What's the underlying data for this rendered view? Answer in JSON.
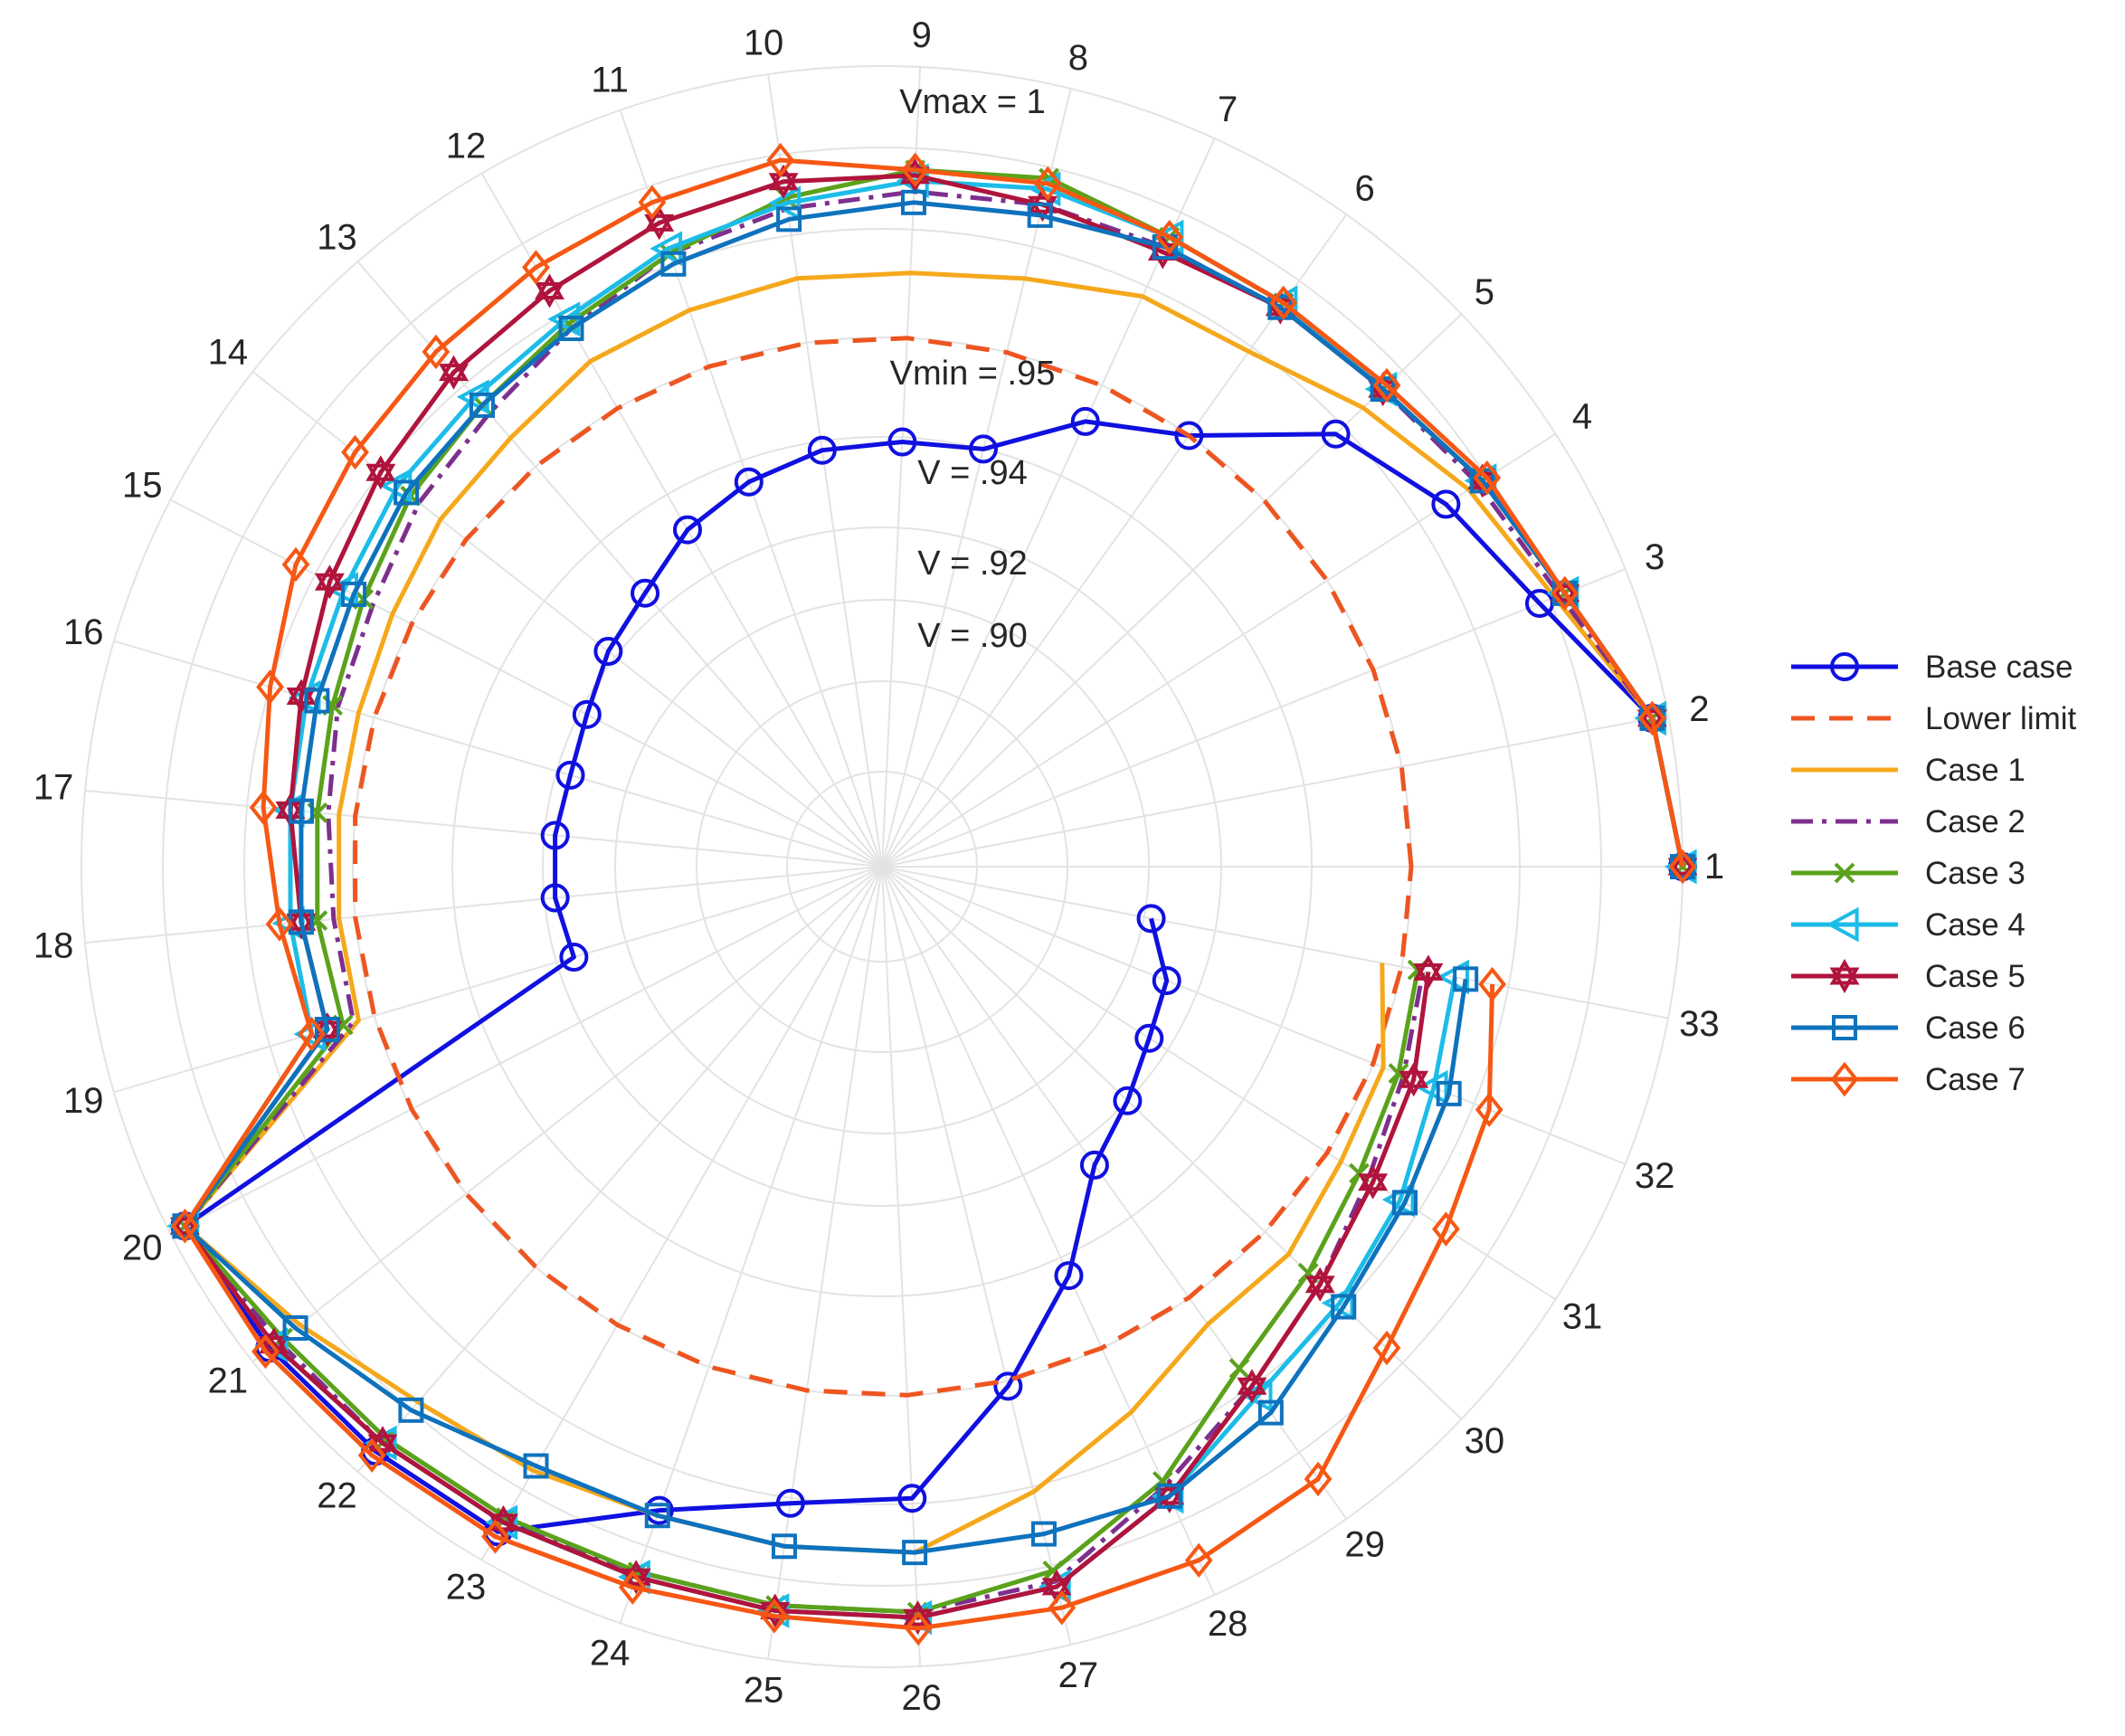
{
  "chart_data": {
    "type": "polar-line",
    "title": "",
    "radial_axis": {
      "label_values": [
        0.9,
        0.92,
        0.94,
        0.95,
        1.0
      ]
    },
    "spokes": [
      "1",
      "2",
      "3",
      "4",
      "5",
      "6",
      "7",
      "8",
      "9",
      "10",
      "11",
      "12",
      "13",
      "14",
      "15",
      "16",
      "17",
      "18",
      "19",
      "20",
      "21",
      "22",
      "23",
      "24",
      "25",
      "26",
      "27",
      "28",
      "29",
      "30",
      "31",
      "32",
      "33"
    ],
    "ring_labels": [
      {
        "value": 1.0,
        "text": "Vmax = 1"
      },
      {
        "value": 0.95,
        "text": "Vmin = .95"
      },
      {
        "value": 0.94,
        "text": "V = .94"
      },
      {
        "value": 0.92,
        "text": "V = .92"
      },
      {
        "value": 0.9,
        "text": "V = .90"
      }
    ],
    "series": [
      {
        "name": "Base case",
        "color": "#1010e0",
        "dash": "solid",
        "marker": "circle",
        "values": [
          1.0,
          0.997,
          0.983,
          0.976,
          0.968,
          0.95,
          0.946,
          0.94,
          0.939,
          0.938,
          0.935,
          0.931,
          0.925,
          0.922,
          0.918,
          0.916,
          0.917,
          0.917,
          0.915,
          0.997,
          0.996,
          0.995,
          0.994,
          0.978,
          0.971,
          0.969,
          0.951,
          0.942,
          0.926,
          0.92,
          0.914,
          0.911,
          0.902
        ]
      },
      {
        "name": "Lower limit",
        "color": "#ee5520",
        "dash": "dashed",
        "marker": "none",
        "values": [
          0.95,
          0.95,
          0.95,
          0.95,
          0.95,
          0.95,
          0.95,
          0.95,
          0.95,
          0.95,
          0.95,
          0.95,
          0.95,
          0.95,
          0.95,
          0.95,
          0.95,
          0.95,
          0.95,
          0.95,
          0.95,
          0.95,
          0.95,
          0.95,
          0.95,
          0.95,
          0.95,
          0.95,
          0.95,
          0.95,
          0.95,
          0.95,
          0.95
        ]
      },
      {
        "name": "Case 1",
        "color": "#f5a81c",
        "dash": "solid",
        "marker": "none",
        "values": [
          1.0,
          0.997,
          0.986,
          0.981,
          0.975,
          0.969,
          0.968,
          0.964,
          0.962,
          0.962,
          0.961,
          0.96,
          0.957,
          0.956,
          0.954,
          0.953,
          0.953,
          0.953,
          0.953,
          0.997,
          0.989,
          0.983,
          0.981,
          0.979,
          0.979,
          0.979,
          0.971,
          0.963,
          0.956,
          0.956,
          0.953,
          0.952,
          0.948
        ]
      },
      {
        "name": "Case 2",
        "color": "#7e2f8e",
        "dash": "dashdot",
        "marker": "none",
        "values": [
          1.0,
          0.997,
          0.987,
          0.983,
          0.98,
          0.979,
          0.978,
          0.978,
          0.977,
          0.975,
          0.972,
          0.967,
          0.963,
          0.961,
          0.958,
          0.957,
          0.955,
          0.954,
          0.954,
          0.997,
          0.994,
          0.993,
          0.992,
          0.99,
          0.99,
          0.99,
          0.988,
          0.978,
          0.97,
          0.964,
          0.959,
          0.956,
          0.954
        ]
      },
      {
        "name": "Case 3",
        "color": "#5ba21c",
        "dash": "solid",
        "marker": "x",
        "values": [
          1.0,
          0.997,
          0.988,
          0.984,
          0.98,
          0.98,
          0.98,
          0.983,
          0.981,
          0.977,
          0.972,
          0.968,
          0.965,
          0.963,
          0.96,
          0.958,
          0.957,
          0.957,
          0.956,
          0.997,
          0.993,
          0.992,
          0.991,
          0.99,
          0.99,
          0.99,
          0.986,
          0.977,
          0.966,
          0.961,
          0.957,
          0.955,
          0.953
        ]
      },
      {
        "name": "Case 4",
        "color": "#1cbce8",
        "dash": "solid",
        "marker": "tri",
        "values": [
          1.0,
          0.997,
          0.988,
          0.984,
          0.98,
          0.98,
          0.98,
          0.981,
          0.979,
          0.976,
          0.973,
          0.969,
          0.967,
          0.966,
          0.964,
          0.963,
          0.962,
          0.962,
          0.962,
          0.997,
          0.995,
          0.993,
          0.992,
          0.991,
          0.991,
          0.991,
          0.989,
          0.98,
          0.972,
          0.969,
          0.966,
          0.962,
          0.96
        ]
      },
      {
        "name": "Case 5",
        "color": "#b0143c",
        "dash": "solid",
        "marker": "star",
        "values": [
          1.0,
          0.997,
          0.988,
          0.984,
          0.98,
          0.979,
          0.977,
          0.978,
          0.98,
          0.98,
          0.978,
          0.975,
          0.973,
          0.97,
          0.967,
          0.964,
          0.962,
          0.96,
          0.959,
          0.997,
          0.995,
          0.993,
          0.992,
          0.991,
          0.991,
          0.991,
          0.989,
          0.98,
          0.97,
          0.964,
          0.96,
          0.958,
          0.955
        ]
      },
      {
        "name": "Case 6",
        "color": "#0e72bd",
        "dash": "solid",
        "marker": "square",
        "values": [
          1.0,
          0.997,
          0.988,
          0.984,
          0.98,
          0.979,
          0.978,
          0.976,
          0.975,
          0.973,
          0.97,
          0.967,
          0.965,
          0.964,
          0.962,
          0.961,
          0.96,
          0.96,
          0.959,
          0.997,
          0.99,
          0.985,
          0.98,
          0.979,
          0.979,
          0.979,
          0.979,
          0.98,
          0.976,
          0.97,
          0.967,
          0.965,
          0.962
        ]
      },
      {
        "name": "Case 7",
        "color": "#f65814",
        "dash": "solid",
        "marker": "diamond",
        "values": [
          1.0,
          0.997,
          0.988,
          0.985,
          0.981,
          0.98,
          0.98,
          0.982,
          0.981,
          0.984,
          0.982,
          0.98,
          0.978,
          0.976,
          0.974,
          0.97,
          0.967,
          0.964,
          0.962,
          0.997,
          0.997,
          0.996,
          0.995,
          0.993,
          0.992,
          0.993,
          0.993,
          0.993,
          0.991,
          0.981,
          0.976,
          0.973,
          0.967
        ]
      }
    ],
    "legend": {
      "position": "right"
    }
  }
}
